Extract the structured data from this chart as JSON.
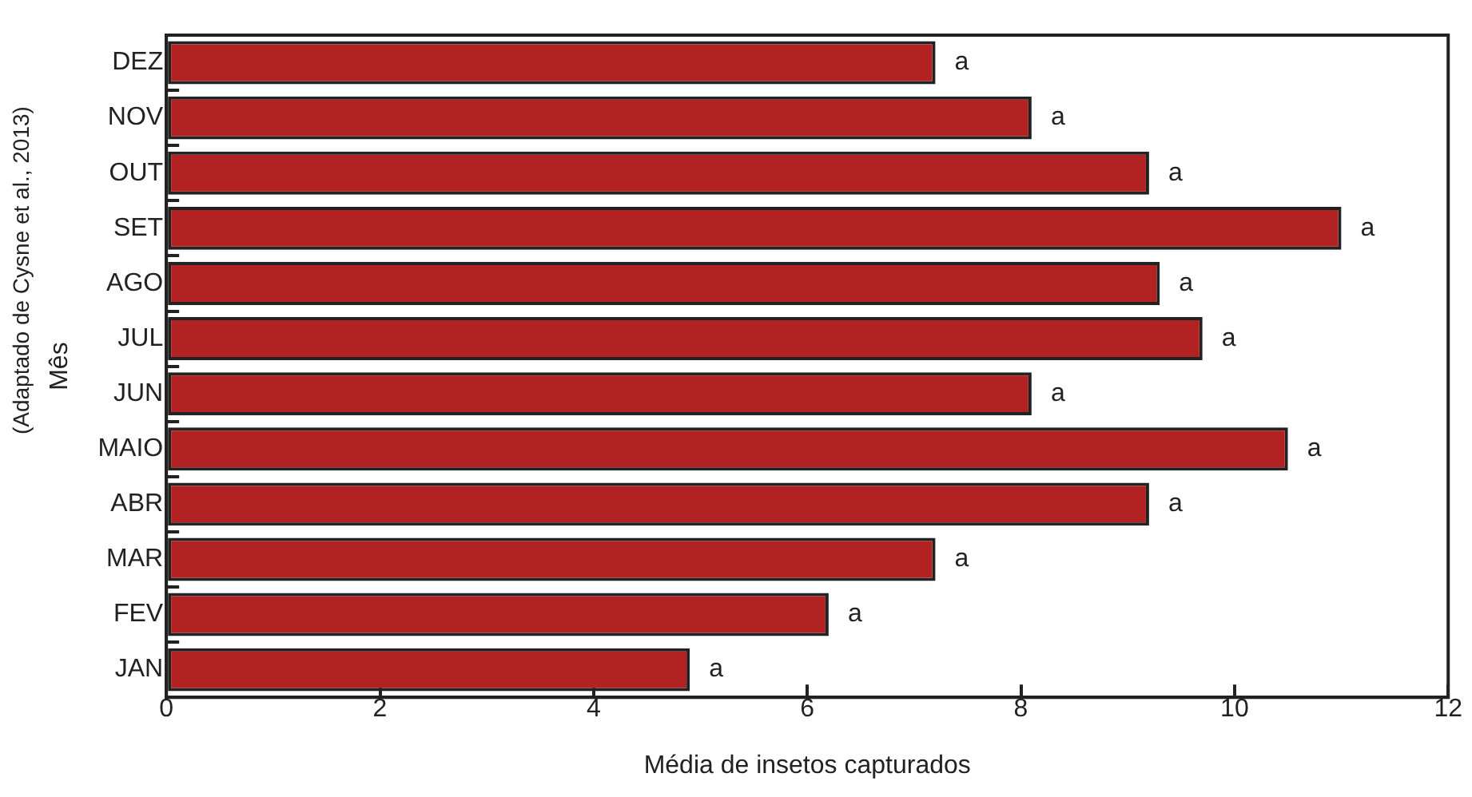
{
  "chart_data": {
    "type": "bar",
    "orientation": "horizontal",
    "xlabel": "Média de insetos capturados",
    "ylabel": "Mês",
    "annotations": [
      "(Adaptado de Cysne et al., 2013)"
    ],
    "categories": [
      "DEZ",
      "NOV",
      "OUT",
      "SET",
      "AGO",
      "JUL",
      "JUN",
      "MAIO",
      "ABR",
      "MAR",
      "FEV",
      "JAN"
    ],
    "values": [
      7.2,
      8.1,
      9.2,
      11.0,
      9.3,
      9.7,
      8.1,
      10.5,
      9.2,
      7.2,
      6.2,
      4.9
    ],
    "value_labels": [
      "a",
      "a",
      "a",
      "a",
      "a",
      "a",
      "a",
      "a",
      "a",
      "a",
      "a",
      "a"
    ],
    "color": "#b22222",
    "xlim": [
      0,
      12
    ],
    "xticks": [
      0,
      2,
      4,
      6,
      8,
      10,
      12
    ],
    "grid": false,
    "legend": false
  }
}
